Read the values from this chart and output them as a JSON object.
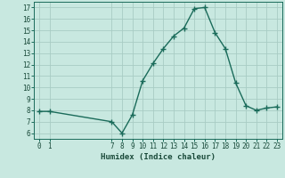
{
  "x": [
    0,
    1,
    7,
    8,
    9,
    10,
    11,
    12,
    13,
    14,
    15,
    16,
    17,
    18,
    19,
    20,
    21,
    22,
    23
  ],
  "y": [
    7.9,
    7.9,
    7.0,
    6.0,
    7.6,
    10.6,
    12.1,
    13.4,
    14.5,
    15.2,
    16.9,
    17.0,
    14.8,
    13.4,
    10.4,
    8.4,
    8.0,
    8.2,
    8.3
  ],
  "xticks": [
    0,
    1,
    7,
    8,
    9,
    10,
    11,
    12,
    13,
    14,
    15,
    16,
    17,
    18,
    19,
    20,
    21,
    22,
    23
  ],
  "yticks": [
    6,
    7,
    8,
    9,
    10,
    11,
    12,
    13,
    14,
    15,
    16,
    17
  ],
  "ylim": [
    5.5,
    17.5
  ],
  "xlim": [
    -0.5,
    23.5
  ],
  "xlabel": "Humidex (Indice chaleur)",
  "line_color": "#1a6b5a",
  "marker": "+",
  "bg_color": "#c8e8e0",
  "grid_color": "#a8ccc4",
  "font_color": "#1a4a3a",
  "tick_fontsize": 5.5,
  "xlabel_fontsize": 6.5,
  "linewidth": 1.0,
  "markersize": 4
}
